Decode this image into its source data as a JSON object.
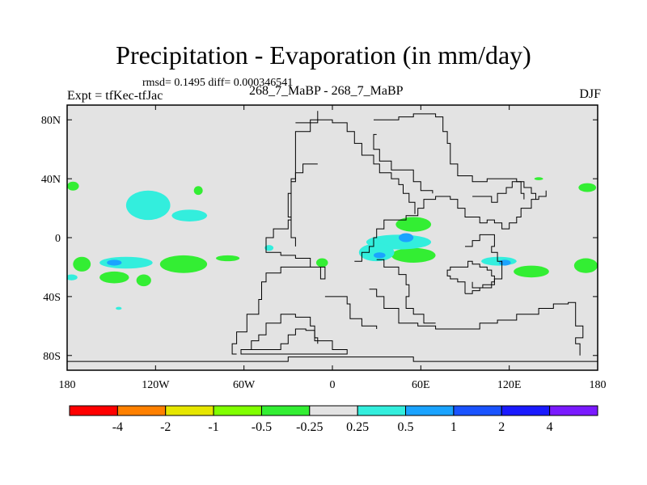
{
  "title": "Precipitation - Evaporation (in mm/day)",
  "stats": "rmsd= 0.1495 diff= 0.000346541",
  "expt": "Expt = tfKec-tfJac",
  "subtitle": "268_7_MaBP - 268_7_MaBP",
  "season": "DJF",
  "colors": {
    "background": "#ffffff",
    "map_fill": "#e3e3e3",
    "coast": "#000000"
  },
  "map": {
    "lon_range": [
      -180,
      180
    ],
    "lat_range": [
      -90,
      90
    ],
    "x_ticks": [
      {
        "value": -180,
        "label": "180"
      },
      {
        "value": -120,
        "label": "120W"
      },
      {
        "value": -60,
        "label": "60W"
      },
      {
        "value": 0,
        "label": "0"
      },
      {
        "value": 60,
        "label": "60E"
      },
      {
        "value": 120,
        "label": "120E"
      },
      {
        "value": 180,
        "label": "180"
      }
    ],
    "y_ticks": [
      {
        "value": 80,
        "label": "80N"
      },
      {
        "value": 40,
        "label": "40N"
      },
      {
        "value": 0,
        "label": "0"
      },
      {
        "value": -40,
        "label": "40S"
      },
      {
        "value": -80,
        "label": "80S"
      }
    ]
  },
  "colorbar": {
    "colors": [
      "#ff0000",
      "#ff8000",
      "#e6e600",
      "#80ff00",
      "#33ee33",
      "#e3e3e3",
      "#33eedd",
      "#1aa3ff",
      "#1a53ff",
      "#1a1aff",
      "#7a1aff"
    ],
    "labels": [
      "-4",
      "-2",
      "-1",
      "-0.5",
      "-0.25",
      "0.25",
      "0.5",
      "1",
      "2",
      "4"
    ]
  },
  "field": [
    {
      "category": "negative-0.5-0.25",
      "color": "#33ee33",
      "lon": -101,
      "lat": -18,
      "rlon": 16,
      "rlat": 6
    },
    {
      "category": "negative-0.5-0.25",
      "color": "#33ee33",
      "lon": -170,
      "lat": -18,
      "rlon": 6,
      "rlat": 5
    },
    {
      "category": "negative-0.5-0.25",
      "color": "#33ee33",
      "lon": -148,
      "lat": -27,
      "rlon": 10,
      "rlat": 4
    },
    {
      "category": "negative-0.5-0.25",
      "color": "#33ee33",
      "lon": -128,
      "lat": -29,
      "rlon": 5,
      "rlat": 4
    },
    {
      "category": "negative-0.5-0.25",
      "color": "#33ee33",
      "lon": 55,
      "lat": 9,
      "rlon": 12,
      "rlat": 5
    },
    {
      "category": "negative-0.5-0.25",
      "color": "#33ee33",
      "lon": 55,
      "lat": -12,
      "rlon": 15,
      "rlat": 5
    },
    {
      "category": "negative-0.5-0.25",
      "color": "#33ee33",
      "lon": 135,
      "lat": -23,
      "rlon": 12,
      "rlat": 4
    },
    {
      "category": "negative-0.5-0.25",
      "color": "#33ee33",
      "lon": 172,
      "lat": -19,
      "rlon": 8,
      "rlat": 5
    },
    {
      "category": "negative-0.5-0.25",
      "color": "#33ee33",
      "lon": -7,
      "lat": -17,
      "rlon": 4,
      "rlat": 3
    },
    {
      "category": "negative-0.5-0.25",
      "color": "#33ee33",
      "lon": 173,
      "lat": 34,
      "rlon": 6,
      "rlat": 3
    },
    {
      "category": "negative-0.5-0.25",
      "color": "#33ee33",
      "lon": -176,
      "lat": 35,
      "rlon": 4,
      "rlat": 3
    },
    {
      "category": "negative-0.5-0.25",
      "color": "#33ee33",
      "lon": -71,
      "lat": -14,
      "rlon": 8,
      "rlat": 2
    },
    {
      "category": "negative-0.5-0.25",
      "color": "#33ee33",
      "lon": -91,
      "lat": 32,
      "rlon": 3,
      "rlat": 3
    },
    {
      "category": "negative-0.5-0.25",
      "color": "#33ee33",
      "lon": 140,
      "lat": 40,
      "rlon": 3,
      "rlat": 1
    },
    {
      "category": "positive-0.25-0.5",
      "color": "#33eedd",
      "lon": -125,
      "lat": 22,
      "rlon": 15,
      "rlat": 10
    },
    {
      "category": "positive-0.25-0.5",
      "color": "#33eedd",
      "lon": -97,
      "lat": 15,
      "rlon": 12,
      "rlat": 4
    },
    {
      "category": "positive-0.25-0.5",
      "color": "#33eedd",
      "lon": -140,
      "lat": -17,
      "rlon": 18,
      "rlat": 4
    },
    {
      "category": "positive-0.25-0.5",
      "color": "#33eedd",
      "lon": 45,
      "lat": -3,
      "rlon": 22,
      "rlat": 5
    },
    {
      "category": "positive-0.25-0.5",
      "color": "#33eedd",
      "lon": 30,
      "lat": -10,
      "rlon": 12,
      "rlat": 6
    },
    {
      "category": "positive-0.25-0.5",
      "color": "#33eedd",
      "lon": 113,
      "lat": -16,
      "rlon": 12,
      "rlat": 3
    },
    {
      "category": "positive-0.25-0.5",
      "color": "#33eedd",
      "lon": -177,
      "lat": -27,
      "rlon": 4,
      "rlat": 2
    },
    {
      "category": "positive-0.25-0.5",
      "color": "#33eedd",
      "lon": -43,
      "lat": -7,
      "rlon": 3,
      "rlat": 2
    },
    {
      "category": "positive-0.25-0.5",
      "color": "#33eedd",
      "lon": -145,
      "lat": -48,
      "rlon": 2,
      "rlat": 1
    },
    {
      "category": "positive-0.5-1",
      "color": "#1aa3ff",
      "lon": 50,
      "lat": 0,
      "rlon": 5,
      "rlat": 3
    },
    {
      "category": "positive-0.5-1",
      "color": "#1aa3ff",
      "lon": -148,
      "lat": -17,
      "rlon": 5,
      "rlat": 2
    },
    {
      "category": "positive-0.5-1",
      "color": "#1aa3ff",
      "lon": 32,
      "lat": -12,
      "rlon": 4,
      "rlat": 2
    },
    {
      "category": "positive-0.5-1",
      "color": "#1aa3ff",
      "lon": 117,
      "lat": -17,
      "rlon": 4,
      "rlat": 2
    }
  ],
  "coastlines": [
    [
      [
        -180,
        -84
      ],
      [
        -30,
        -84
      ],
      [
        -30,
        -81
      ],
      [
        55,
        -81
      ],
      [
        55,
        -84
      ],
      [
        180,
        -84
      ]
    ],
    [
      [
        -45,
        -76
      ],
      [
        -35,
        -72
      ],
      [
        -30,
        -66
      ],
      [
        -25,
        -62
      ],
      [
        -18,
        -63
      ],
      [
        -12,
        -70
      ],
      [
        0,
        -76
      ],
      [
        10,
        -76
      ],
      [
        10,
        -79
      ],
      [
        -30,
        -79
      ],
      [
        -60,
        -79
      ],
      [
        -62,
        -76
      ],
      [
        -45,
        -76
      ]
    ],
    [
      [
        -60,
        -76
      ],
      [
        -55,
        -70
      ],
      [
        -50,
        -66
      ],
      [
        -45,
        -58
      ],
      [
        -35,
        -56
      ],
      [
        -35,
        -52
      ],
      [
        -30,
        -52
      ],
      [
        -25,
        -54
      ],
      [
        -15,
        -60
      ],
      [
        -12,
        -68
      ],
      [
        -10,
        -72
      ]
    ],
    [
      [
        -65,
        -79
      ],
      [
        -68,
        -72
      ],
      [
        -65,
        -64
      ],
      [
        -58,
        -52
      ],
      [
        -50,
        -42
      ],
      [
        -48,
        -30
      ],
      [
        -45,
        -24
      ],
      [
        -35,
        -20
      ],
      [
        -25,
        -20
      ],
      [
        -10,
        -20
      ],
      [
        -5,
        -28
      ],
      [
        -8,
        -20
      ],
      [
        -15,
        -14
      ],
      [
        -25,
        -12
      ],
      [
        -35,
        -10
      ],
      [
        -45,
        -8
      ],
      [
        -45,
        0
      ],
      [
        -40,
        6
      ],
      [
        -30,
        12
      ],
      [
        -28,
        24
      ],
      [
        -28,
        40
      ],
      [
        -25,
        56
      ],
      [
        -25,
        72
      ],
      [
        -15,
        80
      ],
      [
        -10,
        86
      ]
    ],
    [
      [
        -10,
        50
      ],
      [
        -20,
        44
      ],
      [
        -25,
        38
      ],
      [
        -28,
        30
      ],
      [
        -30,
        22
      ],
      [
        -30,
        14
      ],
      [
        -28,
        0
      ],
      [
        -25,
        -6
      ]
    ],
    [
      [
        15,
        -16
      ],
      [
        20,
        -10
      ],
      [
        25,
        -6
      ],
      [
        28,
        0
      ],
      [
        30,
        6
      ],
      [
        35,
        12
      ],
      [
        42,
        12
      ],
      [
        50,
        15
      ],
      [
        58,
        20
      ],
      [
        62,
        26
      ],
      [
        70,
        28
      ],
      [
        80,
        26
      ],
      [
        85,
        20
      ],
      [
        90,
        14
      ],
      [
        100,
        10
      ],
      [
        105,
        12
      ],
      [
        110,
        10
      ],
      [
        115,
        6
      ],
      [
        120,
        10
      ],
      [
        125,
        14
      ],
      [
        128,
        20
      ],
      [
        135,
        26
      ],
      [
        140,
        28
      ],
      [
        145,
        32
      ]
    ],
    [
      [
        90,
        -38
      ],
      [
        90,
        -30
      ],
      [
        85,
        -28
      ],
      [
        80,
        -26
      ],
      [
        78,
        -22
      ],
      [
        80,
        -20
      ],
      [
        85,
        -20
      ],
      [
        92,
        -16
      ],
      [
        95,
        -18
      ],
      [
        100,
        -20
      ],
      [
        105,
        -22
      ],
      [
        108,
        -26
      ],
      [
        110,
        -30
      ],
      [
        108,
        -34
      ],
      [
        100,
        -36
      ],
      [
        95,
        -38
      ],
      [
        90,
        -38
      ]
    ],
    [
      [
        90,
        -6
      ],
      [
        95,
        -2
      ],
      [
        100,
        2
      ],
      [
        105,
        2
      ],
      [
        110,
        -6
      ],
      [
        108,
        -10
      ],
      [
        112,
        -16
      ],
      [
        115,
        -20
      ],
      [
        115,
        -28
      ],
      [
        110,
        -32
      ],
      [
        102,
        -34
      ],
      [
        95,
        -30
      ]
    ],
    [
      [
        25,
        -35
      ],
      [
        30,
        -40
      ],
      [
        35,
        -48
      ],
      [
        45,
        -58
      ],
      [
        58,
        -60
      ],
      [
        70,
        -62
      ],
      [
        90,
        -62
      ],
      [
        100,
        -58
      ],
      [
        112,
        -56
      ],
      [
        125,
        -52
      ],
      [
        140,
        -48
      ],
      [
        150,
        -45
      ],
      [
        160,
        -44
      ],
      [
        165,
        -50
      ],
      [
        165,
        -60
      ],
      [
        170,
        -68
      ],
      [
        165,
        -72
      ],
      [
        168,
        -80
      ]
    ],
    [
      [
        30,
        -15
      ],
      [
        35,
        -20
      ],
      [
        45,
        -25
      ],
      [
        50,
        -32
      ],
      [
        52,
        -40
      ],
      [
        50,
        -48
      ],
      [
        55,
        -52
      ],
      [
        62,
        -58
      ],
      [
        70,
        -58
      ]
    ],
    [
      [
        28,
        80
      ],
      [
        45,
        82
      ],
      [
        55,
        84
      ],
      [
        70,
        82
      ],
      [
        75,
        72
      ],
      [
        78,
        64
      ],
      [
        80,
        50
      ],
      [
        85,
        42
      ],
      [
        95,
        38
      ],
      [
        105,
        40
      ],
      [
        115,
        40
      ],
      [
        125,
        38
      ],
      [
        130,
        34
      ],
      [
        135,
        30
      ],
      [
        138,
        26
      ]
    ],
    [
      [
        30,
        70
      ],
      [
        28,
        60
      ],
      [
        32,
        52
      ],
      [
        40,
        46
      ],
      [
        48,
        46
      ],
      [
        55,
        38
      ],
      [
        60,
        32
      ],
      [
        68,
        30
      ]
    ],
    [
      [
        -25,
        78
      ],
      [
        -10,
        80
      ],
      [
        0,
        78
      ],
      [
        10,
        72
      ],
      [
        15,
        64
      ],
      [
        20,
        56
      ],
      [
        28,
        50
      ],
      [
        32,
        44
      ],
      [
        40,
        40
      ],
      [
        45,
        36
      ],
      [
        48,
        30
      ],
      [
        52,
        24
      ],
      [
        56,
        16
      ]
    ],
    [
      [
        95,
        28
      ],
      [
        100,
        28
      ],
      [
        108,
        24
      ],
      [
        112,
        30
      ],
      [
        118,
        34
      ],
      [
        122,
        38
      ],
      [
        128,
        30
      ],
      [
        130,
        26
      ]
    ],
    [
      [
        -5,
        -40
      ],
      [
        5,
        -40
      ],
      [
        10,
        -45
      ],
      [
        12,
        -55
      ],
      [
        20,
        -60
      ],
      [
        30,
        -62
      ]
    ]
  ]
}
